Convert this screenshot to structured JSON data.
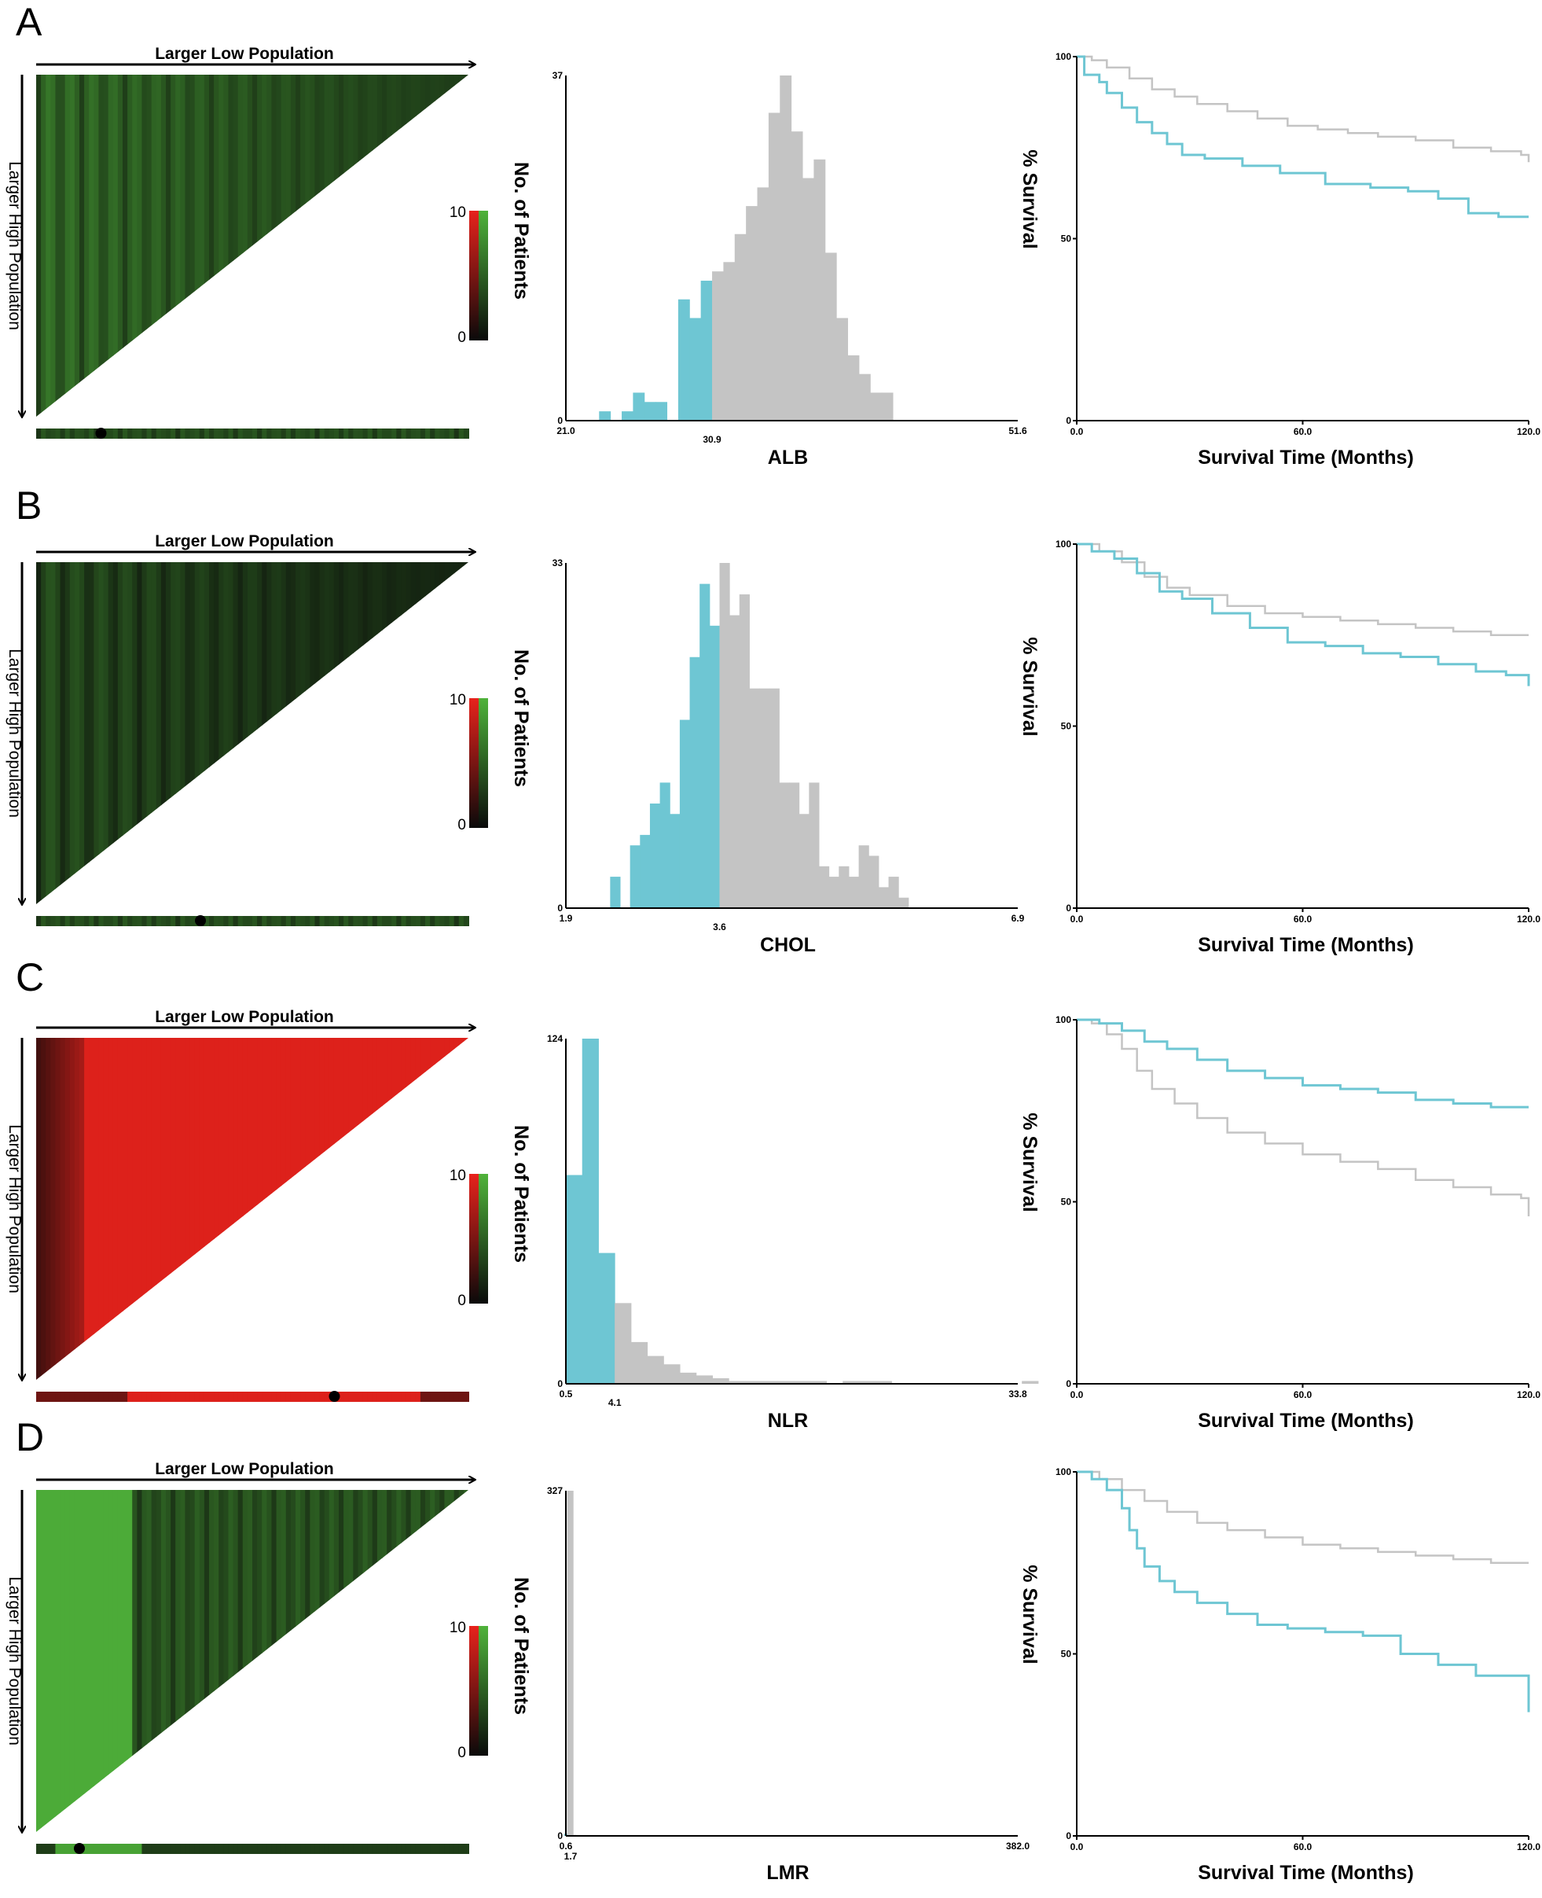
{
  "figure": {
    "heatmap_title": "Larger Low Population",
    "heatmap_side_label": "Larger High Population",
    "scale_max_label": "10",
    "scale_min_label": "0",
    "hist_ylabel": "No. of Patients",
    "km_ylabel": "% Survival",
    "km_xlabel": "Survival Time (Months)",
    "colors": {
      "low_group": "#6ec6d3",
      "high_group": "#c4c4c4",
      "heat_green": "#4fb33a",
      "heat_red": "#e8221c",
      "heat_dark": "#0a0a0a"
    }
  },
  "chart_data": [
    {
      "panel": "A",
      "heatmap": {
        "type": "heatmap",
        "dominant_color": "green",
        "optimal_cut_label_position_fraction": 0.15
      },
      "histogram": {
        "type": "bar",
        "xlabel": "ALB",
        "ylim": [
          0,
          37
        ],
        "y_tick_labels": [
          "37",
          "0"
        ],
        "x_tick_labels": [
          "21.0",
          "30.9",
          "51.6"
        ],
        "xlim": [
          21.0,
          51.6
        ],
        "cutoff": 30.9,
        "bin_width": 0.765,
        "low_values": [
          1,
          0,
          1,
          3,
          2,
          2,
          0,
          13,
          11,
          15
        ],
        "high_values": [
          16,
          17,
          20,
          23,
          25,
          33,
          37,
          31,
          26,
          28,
          18,
          11,
          7,
          5,
          3,
          3
        ]
      },
      "km": {
        "type": "line",
        "xlim": [
          0,
          120
        ],
        "ylim": [
          0,
          100
        ],
        "x_tick_labels": [
          "0.0",
          "60.0",
          "120.0"
        ],
        "y_tick_labels": [
          "100",
          "50",
          "0"
        ],
        "series": [
          {
            "name": "gray",
            "points": [
              [
                0,
                100
              ],
              [
                4,
                99
              ],
              [
                8,
                97
              ],
              [
                14,
                94
              ],
              [
                20,
                91
              ],
              [
                26,
                89
              ],
              [
                32,
                87
              ],
              [
                40,
                85
              ],
              [
                48,
                83
              ],
              [
                56,
                81
              ],
              [
                64,
                80
              ],
              [
                72,
                79
              ],
              [
                80,
                78
              ],
              [
                90,
                77
              ],
              [
                100,
                75
              ],
              [
                110,
                74
              ],
              [
                118,
                73
              ],
              [
                120,
                71
              ]
            ]
          },
          {
            "name": "cyan",
            "points": [
              [
                0,
                100
              ],
              [
                2,
                95
              ],
              [
                6,
                93
              ],
              [
                8,
                90
              ],
              [
                12,
                86
              ],
              [
                16,
                82
              ],
              [
                20,
                79
              ],
              [
                24,
                76
              ],
              [
                28,
                73
              ],
              [
                34,
                72
              ],
              [
                44,
                70
              ],
              [
                54,
                68
              ],
              [
                66,
                65
              ],
              [
                78,
                64
              ],
              [
                88,
                63
              ],
              [
                96,
                61
              ],
              [
                104,
                57
              ],
              [
                112,
                56
              ],
              [
                120,
                56
              ]
            ]
          }
        ]
      }
    },
    {
      "panel": "B",
      "heatmap": {
        "type": "heatmap",
        "dominant_color": "green",
        "optimal_cut_label_position_fraction": 0.38
      },
      "histogram": {
        "type": "bar",
        "xlabel": "CHOL",
        "ylim": [
          0,
          33
        ],
        "y_tick_labels": [
          "33",
          "0"
        ],
        "x_tick_labels": [
          "1.9",
          "3.6",
          "6.9"
        ],
        "xlim": [
          1.9,
          6.9
        ],
        "cutoff": 3.6,
        "bin_width": 0.11,
        "low_values": [
          3,
          0,
          6,
          7,
          10,
          12,
          9,
          18,
          24,
          31,
          27
        ],
        "high_values": [
          33,
          28,
          30,
          21,
          21,
          21,
          12,
          12,
          9,
          12,
          4,
          3,
          4,
          3,
          6,
          5,
          2,
          3,
          1,
          0,
          0
        ]
      },
      "km": {
        "type": "line",
        "xlim": [
          0,
          120
        ],
        "ylim": [
          0,
          100
        ],
        "x_tick_labels": [
          "0.0",
          "60.0",
          "120.0"
        ],
        "y_tick_labels": [
          "100",
          "50",
          "0"
        ],
        "series": [
          {
            "name": "gray",
            "points": [
              [
                0,
                100
              ],
              [
                6,
                98
              ],
              [
                12,
                95
              ],
              [
                18,
                91
              ],
              [
                24,
                88
              ],
              [
                30,
                86
              ],
              [
                40,
                83
              ],
              [
                50,
                81
              ],
              [
                60,
                80
              ],
              [
                70,
                79
              ],
              [
                80,
                78
              ],
              [
                90,
                77
              ],
              [
                100,
                76
              ],
              [
                110,
                75
              ],
              [
                120,
                75
              ]
            ]
          },
          {
            "name": "cyan",
            "points": [
              [
                0,
                100
              ],
              [
                4,
                98
              ],
              [
                10,
                96
              ],
              [
                16,
                92
              ],
              [
                22,
                87
              ],
              [
                28,
                85
              ],
              [
                36,
                81
              ],
              [
                46,
                77
              ],
              [
                56,
                73
              ],
              [
                66,
                72
              ],
              [
                76,
                70
              ],
              [
                86,
                69
              ],
              [
                96,
                67
              ],
              [
                106,
                65
              ],
              [
                114,
                64
              ],
              [
                120,
                61
              ]
            ]
          }
        ]
      }
    },
    {
      "panel": "C",
      "heatmap": {
        "type": "heatmap",
        "dominant_color": "red",
        "optimal_cut_label_position_fraction": 0.69
      },
      "histogram": {
        "type": "bar",
        "xlabel": "NLR",
        "ylim": [
          0,
          124
        ],
        "y_tick_labels": [
          "124",
          "0"
        ],
        "x_tick_labels": [
          "0.5",
          "4.1",
          "33.8"
        ],
        "xlim": [
          0.5,
          33.8
        ],
        "cutoff": 4.1,
        "bin_width": 1.2,
        "low_values": [
          75,
          124,
          47
        ],
        "high_values": [
          29,
          15,
          10,
          7,
          4,
          3,
          2,
          1,
          1,
          1,
          1,
          1,
          1,
          0,
          1,
          1,
          1,
          0,
          0,
          0,
          0,
          0,
          0,
          0,
          0,
          1
        ]
      },
      "km": {
        "type": "line",
        "xlim": [
          0,
          120
        ],
        "ylim": [
          0,
          100
        ],
        "x_tick_labels": [
          "0.0",
          "60.0",
          "120.0"
        ],
        "y_tick_labels": [
          "100",
          "50",
          "0"
        ],
        "series": [
          {
            "name": "gray",
            "points": [
              [
                0,
                100
              ],
              [
                4,
                99
              ],
              [
                8,
                96
              ],
              [
                12,
                92
              ],
              [
                16,
                86
              ],
              [
                20,
                81
              ],
              [
                26,
                77
              ],
              [
                32,
                73
              ],
              [
                40,
                69
              ],
              [
                50,
                66
              ],
              [
                60,
                63
              ],
              [
                70,
                61
              ],
              [
                80,
                59
              ],
              [
                90,
                56
              ],
              [
                100,
                54
              ],
              [
                110,
                52
              ],
              [
                118,
                51
              ],
              [
                120,
                46
              ]
            ]
          },
          {
            "name": "cyan",
            "points": [
              [
                0,
                100
              ],
              [
                6,
                99
              ],
              [
                12,
                97
              ],
              [
                18,
                94
              ],
              [
                24,
                92
              ],
              [
                32,
                89
              ],
              [
                40,
                86
              ],
              [
                50,
                84
              ],
              [
                60,
                82
              ],
              [
                70,
                81
              ],
              [
                80,
                80
              ],
              [
                90,
                78
              ],
              [
                100,
                77
              ],
              [
                110,
                76
              ],
              [
                120,
                76
              ]
            ]
          }
        ]
      }
    },
    {
      "panel": "D",
      "heatmap": {
        "type": "heatmap",
        "dominant_color": "green",
        "optimal_cut_label_position_fraction": 0.1
      },
      "histogram": {
        "type": "bar",
        "xlabel": "LMR",
        "ylim": [
          0,
          327
        ],
        "y_tick_labels": [
          "327",
          "0"
        ],
        "x_tick_labels": [
          "0.6",
          "1.7",
          "382.0"
        ],
        "xlim": [
          0.6,
          382.0
        ],
        "cutoff": 1.7,
        "bin_width": 2.5,
        "low_values": [
          2
        ],
        "high_values": [
          327,
          327,
          1,
          0,
          0,
          0,
          0,
          0,
          0,
          0,
          0,
          0,
          0,
          0,
          0,
          0,
          0,
          0,
          0,
          0,
          0,
          0,
          0,
          0,
          0,
          0,
          0,
          0,
          0,
          0,
          0,
          0,
          0,
          0,
          0,
          0,
          0,
          0,
          0,
          0,
          0,
          0,
          0,
          0,
          0,
          0,
          0,
          0,
          0,
          0,
          0,
          0,
          0,
          0,
          0,
          0,
          0,
          0,
          0,
          0,
          0,
          0,
          0,
          0,
          0,
          0,
          0,
          0,
          0,
          0,
          0,
          0,
          0,
          0,
          0,
          0,
          0,
          0,
          0,
          0,
          0,
          0,
          0,
          0,
          0,
          0,
          0,
          0,
          0,
          0,
          0,
          0,
          0,
          0,
          0,
          0,
          0,
          0,
          0,
          0,
          0,
          0,
          0,
          0,
          0,
          0,
          0,
          0,
          0,
          0,
          0,
          0,
          0,
          0,
          0,
          0,
          0,
          0,
          0,
          0,
          0,
          0,
          0,
          0,
          0,
          0,
          0,
          0,
          0,
          0,
          0,
          0,
          0,
          0,
          0,
          0,
          0,
          0,
          0,
          0,
          0,
          0,
          0,
          0,
          0,
          0,
          0,
          0,
          0,
          0,
          0,
          1
        ]
      },
      "km": {
        "type": "line",
        "xlim": [
          0,
          120
        ],
        "ylim": [
          0,
          100
        ],
        "x_tick_labels": [
          "0.0",
          "60.0",
          "120.0"
        ],
        "y_tick_labels": [
          "100",
          "50",
          "0"
        ],
        "series": [
          {
            "name": "gray",
            "points": [
              [
                0,
                100
              ],
              [
                6,
                98
              ],
              [
                12,
                95
              ],
              [
                18,
                92
              ],
              [
                24,
                89
              ],
              [
                32,
                86
              ],
              [
                40,
                84
              ],
              [
                50,
                82
              ],
              [
                60,
                80
              ],
              [
                70,
                79
              ],
              [
                80,
                78
              ],
              [
                90,
                77
              ],
              [
                100,
                76
              ],
              [
                110,
                75
              ],
              [
                120,
                75
              ]
            ]
          },
          {
            "name": "cyan",
            "points": [
              [
                0,
                100
              ],
              [
                4,
                98
              ],
              [
                8,
                95
              ],
              [
                12,
                90
              ],
              [
                14,
                84
              ],
              [
                16,
                79
              ],
              [
                18,
                74
              ],
              [
                22,
                70
              ],
              [
                26,
                67
              ],
              [
                32,
                64
              ],
              [
                40,
                61
              ],
              [
                48,
                58
              ],
              [
                56,
                57
              ],
              [
                66,
                56
              ],
              [
                76,
                55
              ],
              [
                86,
                50
              ],
              [
                96,
                47
              ],
              [
                106,
                44
              ],
              [
                114,
                44
              ],
              [
                120,
                34
              ]
            ]
          }
        ]
      }
    }
  ]
}
